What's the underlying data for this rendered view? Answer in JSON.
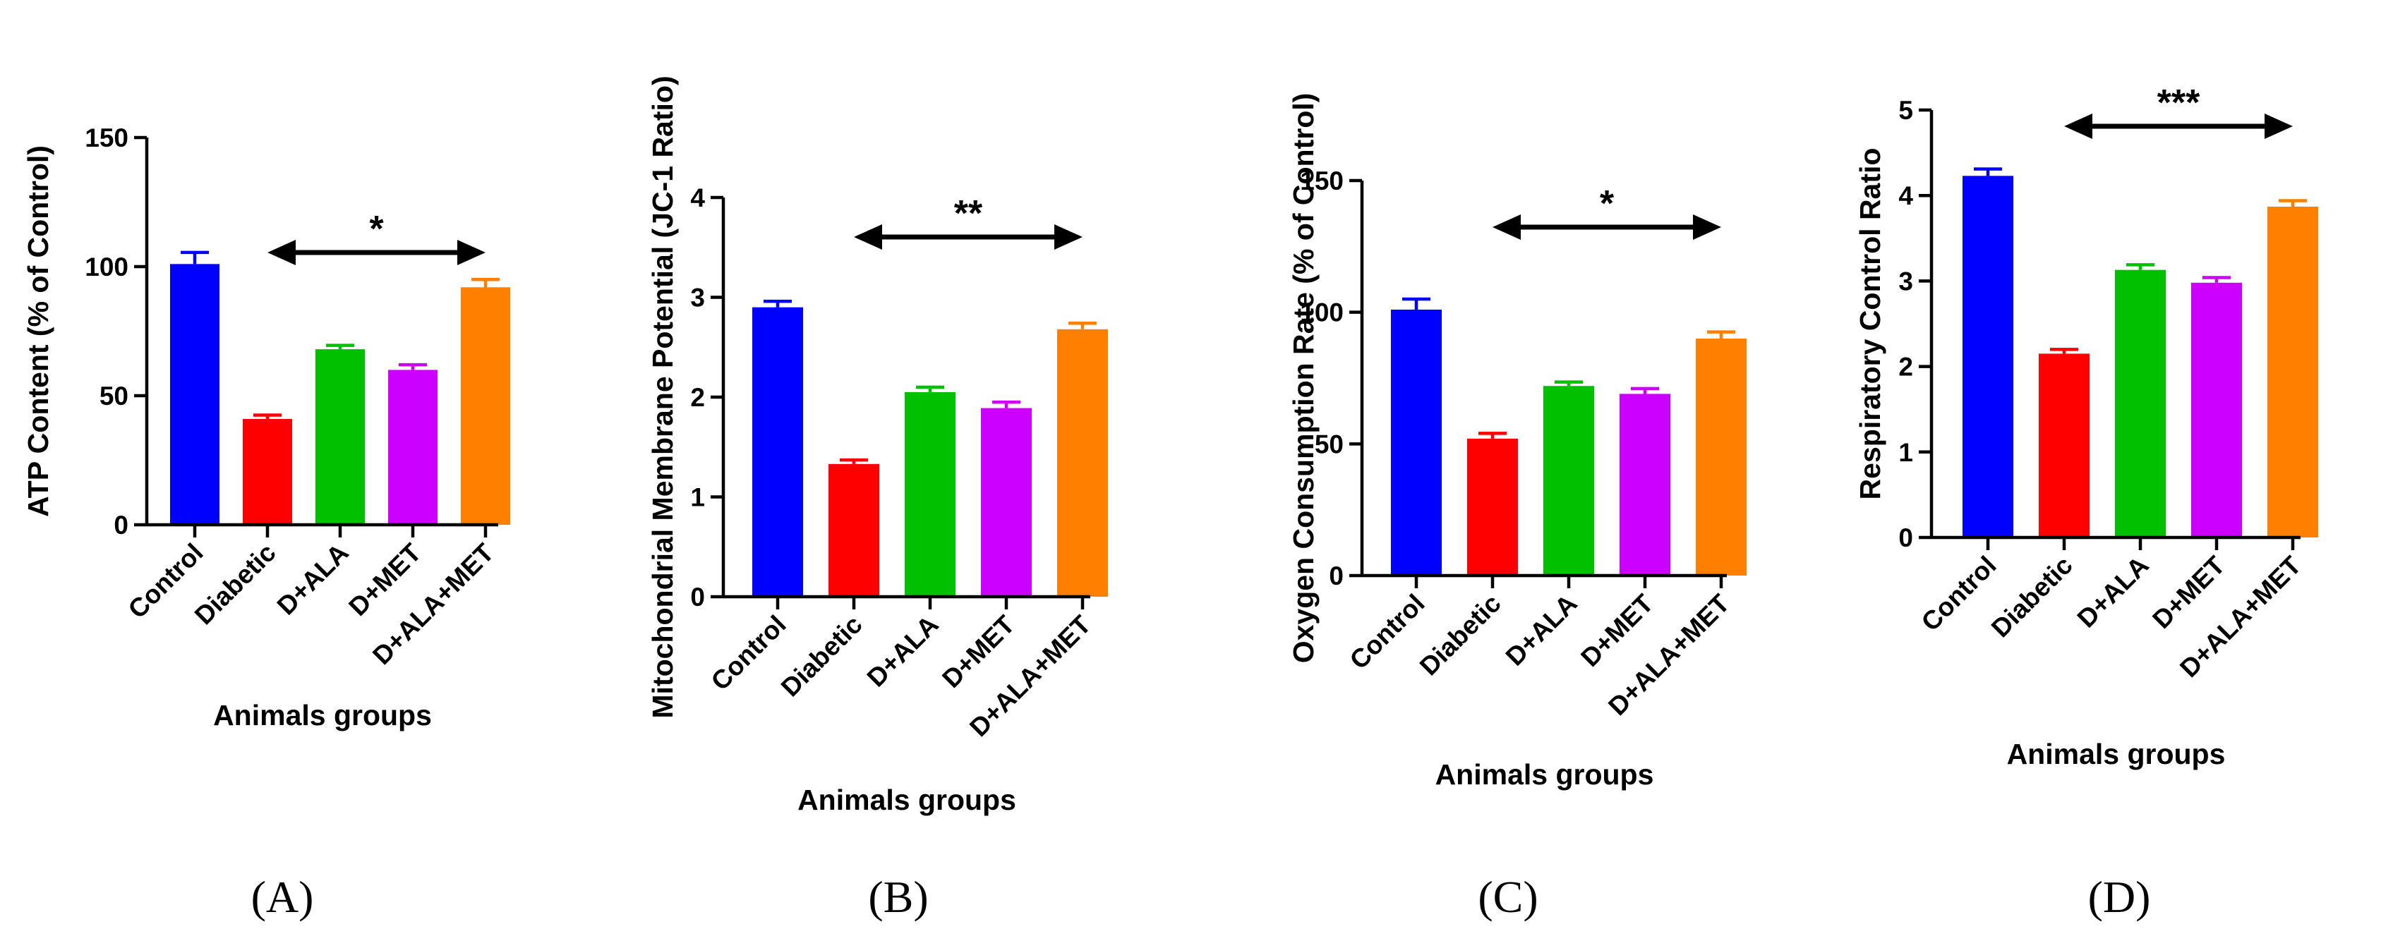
{
  "chart_data": [
    {
      "type": "bar",
      "panel_label": "(A)",
      "title": "",
      "categories": [
        "Control",
        "Diabetic",
        "D+ALA",
        "D+MET",
        "D+ALA+MET"
      ],
      "values": [
        101,
        41,
        68,
        60,
        92
      ],
      "errors": [
        4.5,
        1.5,
        1.5,
        2,
        3
      ],
      "colors": [
        "#0000ff",
        "#ff0000",
        "#00c000",
        "#cc00ff",
        "#ff8000"
      ],
      "xlabel": "Animals groups",
      "ylabel": "ATP Content (% of Control)",
      "ylim": [
        0,
        150
      ],
      "yticks": [
        0,
        50,
        100,
        150
      ],
      "significance": {
        "label": "*",
        "from": "Diabetic",
        "to": "D+ALA+MET"
      }
    },
    {
      "type": "bar",
      "panel_label": "(B)",
      "title": "",
      "categories": [
        "Control",
        "Diabetic",
        "D+ALA",
        "D+MET",
        "D+ALA+MET"
      ],
      "values": [
        2.9,
        1.33,
        2.05,
        1.89,
        2.68
      ],
      "errors": [
        0.06,
        0.04,
        0.05,
        0.06,
        0.06
      ],
      "colors": [
        "#0000ff",
        "#ff0000",
        "#00c000",
        "#cc00ff",
        "#ff8000"
      ],
      "xlabel": "Animals groups",
      "ylabel": "Mitochondrial Membrane Potential (JC-1 Ratio)",
      "ylim": [
        0,
        4
      ],
      "yticks": [
        0,
        1,
        2,
        3,
        4
      ],
      "significance": {
        "label": "**",
        "from": "Diabetic",
        "to": "D+ALA+MET"
      }
    },
    {
      "type": "bar",
      "panel_label": "(C)",
      "title": "",
      "categories": [
        "Control",
        "Diabetic",
        "D+ALA",
        "D+MET",
        "D+ALA+MET"
      ],
      "values": [
        101,
        52,
        72,
        69,
        90
      ],
      "errors": [
        4,
        2,
        1.5,
        2,
        2.5
      ],
      "colors": [
        "#0000ff",
        "#ff0000",
        "#00c000",
        "#cc00ff",
        "#ff8000"
      ],
      "xlabel": "Animals groups",
      "ylabel": "Oxygen Consumption Rate (% of Control)",
      "ylim": [
        0,
        150
      ],
      "yticks": [
        0,
        50,
        100,
        150
      ],
      "significance": {
        "label": "*",
        "from": "Diabetic",
        "to": "D+ALA+MET"
      }
    },
    {
      "type": "bar",
      "panel_label": "(D)",
      "title": "",
      "categories": [
        "Control",
        "Diabetic",
        "D+ALA",
        "D+MET",
        "D+ALA+MET"
      ],
      "values": [
        4.23,
        2.15,
        3.13,
        2.98,
        3.87
      ],
      "errors": [
        0.08,
        0.05,
        0.06,
        0.06,
        0.07
      ],
      "colors": [
        "#0000ff",
        "#ff0000",
        "#00c000",
        "#cc00ff",
        "#ff8000"
      ],
      "xlabel": "Animals groups",
      "ylabel": "Respiratory Control Ratio",
      "ylim": [
        0,
        5
      ],
      "yticks": [
        0,
        1,
        2,
        3,
        4,
        5
      ],
      "significance": {
        "label": "***",
        "from": "Diabetic",
        "to": "D+ALA+MET"
      }
    }
  ]
}
